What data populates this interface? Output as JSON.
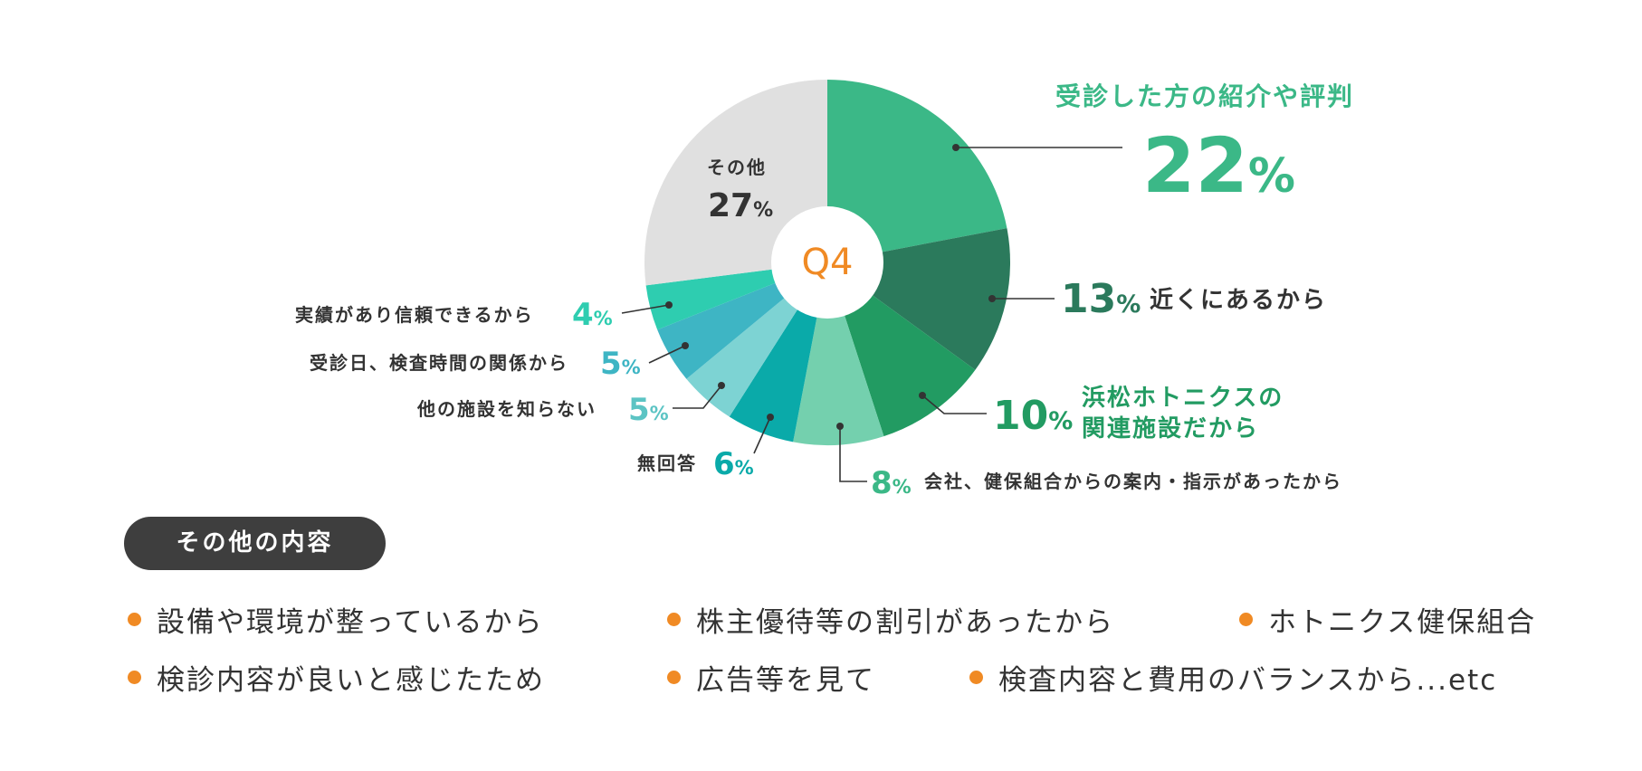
{
  "chart_data": {
    "type": "pie",
    "center_label": "Q4",
    "slices": [
      {
        "label": "受診した方の紹介や評判",
        "value": 22,
        "display": "22",
        "color": "#3bb887",
        "text_color": "#3bb887"
      },
      {
        "label": "近くにあるから",
        "value": 13,
        "display": "13",
        "color": "#2b7a5c",
        "text_color": "#2b7a5c"
      },
      {
        "label": "浜松ホトニクスの 関連施設だから",
        "value": 10,
        "display": "10",
        "color": "#229b62",
        "text_color": "#229b62"
      },
      {
        "label": "会社、健保組合からの案内・指示があったから",
        "value": 8,
        "display": "8",
        "color": "#74d0ae",
        "text_color": "#3bb887"
      },
      {
        "label": "無回答",
        "value": 6,
        "display": "6",
        "color": "#0aaaa9",
        "text_color": "#0aaaa9"
      },
      {
        "label": "他の施設を知らない",
        "value": 5,
        "display": "5",
        "color": "#7dd3d3",
        "text_color": "#5cc4c4"
      },
      {
        "label": "受診日、検査時間の関係から",
        "value": 5,
        "display": "5",
        "color": "#3eb5c4",
        "text_color": "#3eb5c4"
      },
      {
        "label": "実績があり信頼できるから",
        "value": 4,
        "display": "4",
        "color": "#2ecdb0",
        "text_color": "#2ecdb0"
      },
      {
        "label": "その他",
        "value": 27,
        "display": "27",
        "color": "#e0e0e0",
        "text_color": "#333333"
      }
    ],
    "unit": "%"
  },
  "other_section": {
    "title": "その他の内容",
    "items": [
      "設備や環境が整っているから",
      "株主優待等の割引があったから",
      "ホトニクス健保組合",
      "検診内容が良いと感じたため",
      "広告等を見て",
      "検査内容と費用のバランスから...etc"
    ],
    "bullet_color": "#f08a24"
  }
}
